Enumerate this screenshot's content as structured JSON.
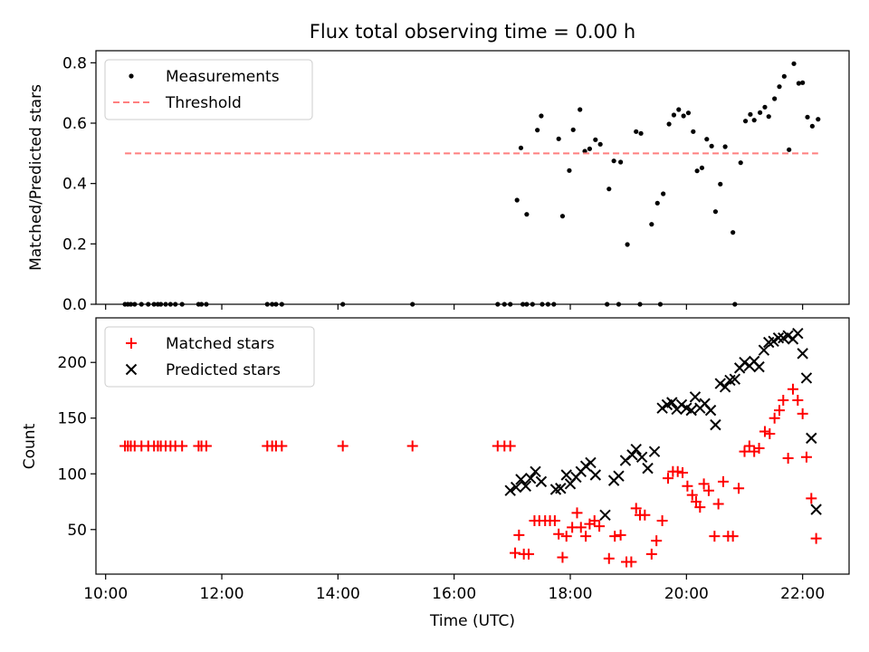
{
  "chart_data": [
    {
      "type": "scatter",
      "title": "Flux total observing time = 0.00 h",
      "ylabel": "Matched/Predicted stars",
      "xlabel": "",
      "ylim": [
        0,
        0.84
      ],
      "xlim": [
        "09:50",
        "22:48"
      ],
      "yticks": [
        "0.0",
        "0.2",
        "0.4",
        "0.6",
        "0.8"
      ],
      "grid": false,
      "legend": "top-left",
      "series": [
        {
          "name": "Measurements",
          "marker": "dot",
          "color": "#000000",
          "points": [
            [
              "10:20",
              0
            ],
            [
              "10:23",
              0
            ],
            [
              "10:26",
              0
            ],
            [
              "10:30",
              0
            ],
            [
              "10:37",
              0
            ],
            [
              "10:44",
              0
            ],
            [
              "10:50",
              0
            ],
            [
              "10:54",
              0
            ],
            [
              "10:57",
              0
            ],
            [
              "11:02",
              0
            ],
            [
              "11:07",
              0
            ],
            [
              "11:12",
              0
            ],
            [
              "11:19",
              0
            ],
            [
              "11:36",
              0
            ],
            [
              "11:39",
              0
            ],
            [
              "11:44",
              0
            ],
            [
              "12:47",
              0
            ],
            [
              "12:52",
              0
            ],
            [
              "12:56",
              0
            ],
            [
              "13:02",
              0
            ],
            [
              "14:05",
              0
            ],
            [
              "15:17",
              0
            ],
            [
              "16:45",
              0
            ],
            [
              "16:52",
              0
            ],
            [
              "16:58",
              0
            ],
            [
              "17:11",
              0
            ],
            [
              "17:15",
              0
            ],
            [
              "17:21",
              0
            ],
            [
              "17:31",
              0
            ],
            [
              "17:37",
              0
            ],
            [
              "17:43",
              0
            ],
            [
              "18:38",
              0
            ],
            [
              "18:50",
              0
            ],
            [
              "19:12",
              0
            ],
            [
              "19:33",
              0
            ],
            [
              "20:50",
              0
            ],
            [
              "17:05",
              0.345
            ],
            [
              "17:09",
              0.518
            ],
            [
              "17:15",
              0.298
            ],
            [
              "17:26",
              0.577
            ],
            [
              "17:30",
              0.624
            ],
            [
              "17:48",
              0.548
            ],
            [
              "17:52",
              0.292
            ],
            [
              "17:59",
              0.443
            ],
            [
              "18:03",
              0.578
            ],
            [
              "18:10",
              0.645
            ],
            [
              "18:15",
              0.507
            ],
            [
              "18:20",
              0.515
            ],
            [
              "18:26",
              0.545
            ],
            [
              "18:31",
              0.53
            ],
            [
              "18:40",
              0.382
            ],
            [
              "18:45",
              0.475
            ],
            [
              "18:52",
              0.471
            ],
            [
              "18:59",
              0.198
            ],
            [
              "19:08",
              0.572
            ],
            [
              "19:13",
              0.566
            ],
            [
              "19:24",
              0.265
            ],
            [
              "19:30",
              0.335
            ],
            [
              "19:36",
              0.366
            ],
            [
              "19:42",
              0.597
            ],
            [
              "19:47",
              0.627
            ],
            [
              "19:52",
              0.645
            ],
            [
              "19:57",
              0.624
            ],
            [
              "20:02",
              0.634
            ],
            [
              "20:07",
              0.572
            ],
            [
              "20:11",
              0.442
            ],
            [
              "20:16",
              0.452
            ],
            [
              "20:21",
              0.547
            ],
            [
              "20:26",
              0.524
            ],
            [
              "20:30",
              0.307
            ],
            [
              "20:35",
              0.398
            ],
            [
              "20:40",
              0.522
            ],
            [
              "20:48",
              0.238
            ],
            [
              "20:56",
              0.469
            ],
            [
              "21:01",
              0.607
            ],
            [
              "21:06",
              0.629
            ],
            [
              "21:10",
              0.61
            ],
            [
              "21:16",
              0.635
            ],
            [
              "21:21",
              0.653
            ],
            [
              "21:25",
              0.622
            ],
            [
              "21:31",
              0.681
            ],
            [
              "21:36",
              0.721
            ],
            [
              "21:41",
              0.755
            ],
            [
              "21:46",
              0.512
            ],
            [
              "21:51",
              0.797
            ],
            [
              "21:56",
              0.732
            ],
            [
              "22:00",
              0.734
            ],
            [
              "22:05",
              0.62
            ],
            [
              "22:10",
              0.59
            ],
            [
              "22:16",
              0.613
            ]
          ]
        },
        {
          "name": "Threshold",
          "marker": "dashed-line",
          "color": "#ff7f7f",
          "points": [
            [
              "10:20",
              0.5
            ],
            [
              "22:16",
              0.5
            ]
          ]
        }
      ]
    },
    {
      "type": "scatter",
      "title": "",
      "ylabel": "Count",
      "xlabel": "Time (UTC)",
      "ylim": [
        10,
        240
      ],
      "xlim": [
        "09:50",
        "22:48"
      ],
      "yticks": [
        "50",
        "100",
        "150",
        "200"
      ],
      "xticks": [
        "10:00",
        "12:00",
        "14:00",
        "16:00",
        "18:00",
        "20:00",
        "22:00"
      ],
      "grid": false,
      "legend": "top-left",
      "series": [
        {
          "name": "Matched stars",
          "marker": "plus",
          "color": "#ff0000",
          "points": [
            [
              "10:20",
              125
            ],
            [
              "10:23",
              125
            ],
            [
              "10:26",
              125
            ],
            [
              "10:30",
              125
            ],
            [
              "10:37",
              125
            ],
            [
              "10:44",
              125
            ],
            [
              "10:50",
              125
            ],
            [
              "10:54",
              125
            ],
            [
              "10:57",
              125
            ],
            [
              "11:02",
              125
            ],
            [
              "11:07",
              125
            ],
            [
              "11:12",
              125
            ],
            [
              "11:19",
              125
            ],
            [
              "11:36",
              125
            ],
            [
              "11:39",
              125
            ],
            [
              "11:44",
              125
            ],
            [
              "12:47",
              125
            ],
            [
              "12:52",
              125
            ],
            [
              "12:56",
              125
            ],
            [
              "13:02",
              125
            ],
            [
              "14:05",
              125
            ],
            [
              "15:17",
              125
            ],
            [
              "16:45",
              125
            ],
            [
              "16:52",
              125
            ],
            [
              "16:58",
              125
            ],
            [
              "17:03",
              29
            ],
            [
              "17:07",
              45
            ],
            [
              "17:12",
              28
            ],
            [
              "17:17",
              28
            ],
            [
              "17:23",
              58
            ],
            [
              "17:28",
              58
            ],
            [
              "17:34",
              58
            ],
            [
              "17:39",
              58
            ],
            [
              "17:44",
              58
            ],
            [
              "17:48",
              46
            ],
            [
              "17:52",
              25
            ],
            [
              "17:56",
              44
            ],
            [
              "18:02",
              52
            ],
            [
              "18:07",
              65
            ],
            [
              "18:11",
              52
            ],
            [
              "18:16",
              44
            ],
            [
              "18:20",
              55
            ],
            [
              "18:25",
              58
            ],
            [
              "18:30",
              53
            ],
            [
              "18:40",
              24
            ],
            [
              "18:46",
              44
            ],
            [
              "18:52",
              45
            ],
            [
              "18:58",
              21
            ],
            [
              "19:03",
              21
            ],
            [
              "19:08",
              69
            ],
            [
              "19:12",
              63
            ],
            [
              "19:17",
              63
            ],
            [
              "19:24",
              28
            ],
            [
              "19:29",
              40
            ],
            [
              "19:35",
              58
            ],
            [
              "19:41",
              96
            ],
            [
              "19:46",
              102
            ],
            [
              "19:51",
              102
            ],
            [
              "19:56",
              101
            ],
            [
              "20:01",
              89
            ],
            [
              "20:06",
              81
            ],
            [
              "20:10",
              75
            ],
            [
              "20:14",
              70
            ],
            [
              "20:18",
              91
            ],
            [
              "20:23",
              85
            ],
            [
              "20:29",
              44
            ],
            [
              "20:33",
              73
            ],
            [
              "20:38",
              93
            ],
            [
              "20:43",
              44
            ],
            [
              "20:48",
              44
            ],
            [
              "20:54",
              87
            ],
            [
              "21:00",
              120
            ],
            [
              "21:05",
              125
            ],
            [
              "21:10",
              120
            ],
            [
              "21:15",
              123
            ],
            [
              "21:21",
              138
            ],
            [
              "21:26",
              136
            ],
            [
              "21:31",
              150
            ],
            [
              "21:36",
              157
            ],
            [
              "21:40",
              166
            ],
            [
              "21:45",
              114
            ],
            [
              "21:50",
              176
            ],
            [
              "21:55",
              166
            ],
            [
              "22:00",
              154
            ],
            [
              "22:04",
              115
            ],
            [
              "22:09",
              78
            ],
            [
              "22:14",
              42
            ]
          ]
        },
        {
          "name": "Predicted stars",
          "marker": "x",
          "color": "#000000",
          "points": [
            [
              "16:58",
              85
            ],
            [
              "17:04",
              88
            ],
            [
              "17:09",
              95
            ],
            [
              "17:14",
              89
            ],
            [
              "17:19",
              96
            ],
            [
              "17:24",
              102
            ],
            [
              "17:30",
              93
            ],
            [
              "17:45",
              86
            ],
            [
              "17:50",
              87
            ],
            [
              "17:56",
              99
            ],
            [
              "18:00",
              91
            ],
            [
              "18:06",
              97
            ],
            [
              "18:11",
              102
            ],
            [
              "18:16",
              107
            ],
            [
              "18:21",
              110
            ],
            [
              "18:26",
              99
            ],
            [
              "18:36",
              63
            ],
            [
              "18:45",
              94
            ],
            [
              "18:50",
              98
            ],
            [
              "18:57",
              112
            ],
            [
              "19:04",
              117
            ],
            [
              "19:08",
              122
            ],
            [
              "19:14",
              115
            ],
            [
              "19:20",
              105
            ],
            [
              "19:27",
              120
            ],
            [
              "19:35",
              159
            ],
            [
              "19:40",
              162
            ],
            [
              "19:45",
              164
            ],
            [
              "19:50",
              158
            ],
            [
              "19:55",
              162
            ],
            [
              "20:00",
              159
            ],
            [
              "20:05",
              157
            ],
            [
              "20:09",
              169
            ],
            [
              "20:14",
              159
            ],
            [
              "20:19",
              163
            ],
            [
              "20:25",
              157
            ],
            [
              "20:30",
              144
            ],
            [
              "20:35",
              181
            ],
            [
              "20:40",
              178
            ],
            [
              "20:45",
              184
            ],
            [
              "20:50",
              185
            ],
            [
              "20:55",
              195
            ],
            [
              "21:00",
              200
            ],
            [
              "21:05",
              197
            ],
            [
              "21:10",
              201
            ],
            [
              "21:15",
              196
            ],
            [
              "21:20",
              211
            ],
            [
              "21:25",
              218
            ],
            [
              "21:30",
              219
            ],
            [
              "21:35",
              222
            ],
            [
              "21:40",
              222
            ],
            [
              "21:45",
              224
            ],
            [
              "21:50",
              221
            ],
            [
              "21:55",
              226
            ],
            [
              "22:00",
              208
            ],
            [
              "22:04",
              186
            ],
            [
              "22:09",
              132
            ],
            [
              "22:14",
              68
            ]
          ]
        }
      ]
    }
  ]
}
